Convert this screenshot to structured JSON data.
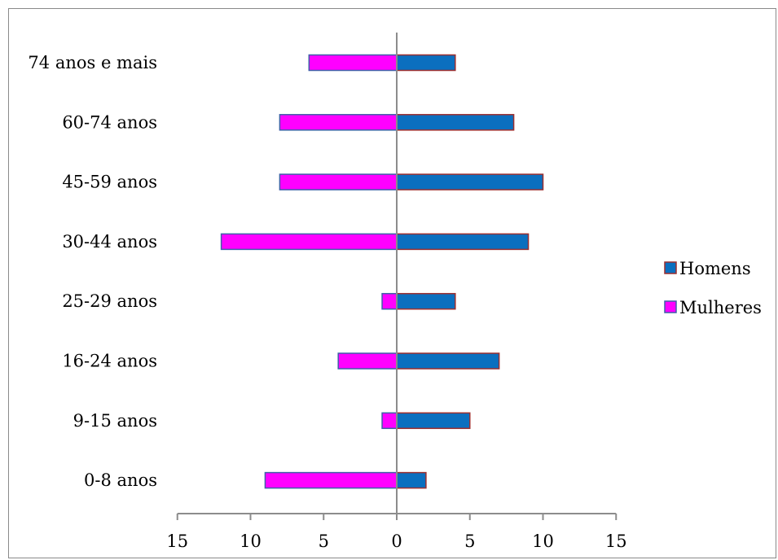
{
  "chart_data": {
    "type": "bar",
    "orientation": "horizontal",
    "layout": "population-pyramid",
    "categories": [
      "74 anos e mais",
      "60-74 anos",
      "45-59 anos",
      "30-44 anos",
      "25-29 anos",
      "16-24 anos",
      "9-15 anos",
      "0-8 anos"
    ],
    "series": [
      {
        "name": "Homens",
        "color": "#0b6fbf",
        "border": "#9b2f2f",
        "side": "right",
        "values": [
          4,
          8,
          10,
          9,
          4,
          7,
          5,
          2
        ]
      },
      {
        "name": "Mulheres",
        "color": "#ff00ff",
        "border": "#3f5fa8",
        "side": "left",
        "values": [
          6,
          8,
          8,
          12,
          1,
          4,
          1,
          9
        ]
      }
    ],
    "xaxis": {
      "min": -15,
      "max": 15,
      "ticks": [
        -15,
        -10,
        -5,
        0,
        5,
        10,
        15
      ],
      "tick_labels": [
        "15",
        "10",
        "5",
        "0",
        "5",
        "10",
        "15"
      ]
    },
    "legend": {
      "placement": "right"
    },
    "grid": false
  }
}
